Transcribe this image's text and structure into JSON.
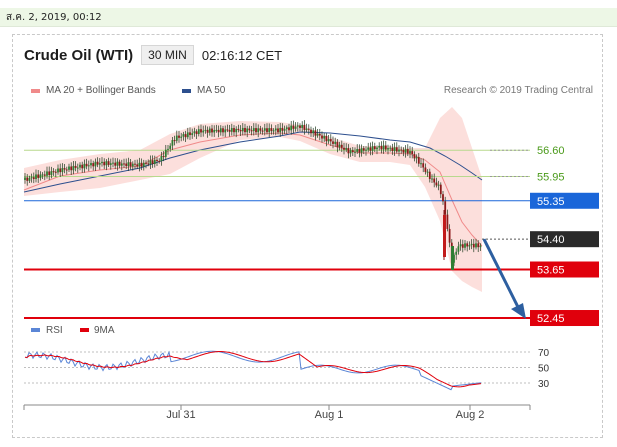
{
  "top_bar": {
    "date_text": "ส.ค. 2, 2019, 00:12"
  },
  "header": {
    "title": "Crude Oil (WTI)",
    "timeframe": "30 MIN",
    "time": "02:16:12 CET"
  },
  "legend": {
    "ma20_label": "MA 20 + Bollinger Bands",
    "ma50_label": "MA 50",
    "ma20_color": "#f08a8a",
    "ma50_color": "#2d4f8e"
  },
  "credit": "Research © 2019 Trading Central",
  "rsi_legend": {
    "rsi_label": "RSI",
    "ma_label": "9MA"
  },
  "chart_data": {
    "type": "candlestick",
    "x_tick_labels": [
      "Jul 31",
      "Aug 1",
      "Aug 2"
    ],
    "levels": [
      {
        "value": 56.6,
        "label": "56.60",
        "kind": "resistance",
        "color": "#4a9a1a"
      },
      {
        "value": 55.95,
        "label": "55.95",
        "kind": "resistance",
        "color": "#4a9a1a"
      },
      {
        "value": 55.35,
        "label": "55.35",
        "kind": "pivot",
        "color": "#1a66d9"
      },
      {
        "value": 54.4,
        "label": "54.40",
        "kind": "last",
        "color": "#222222"
      },
      {
        "value": 53.65,
        "label": "53.65",
        "kind": "support",
        "color": "#e0000c"
      },
      {
        "value": 52.45,
        "label": "52.45",
        "kind": "support",
        "color": "#e0000c"
      }
    ],
    "projection": {
      "from": 54.4,
      "to": 52.45,
      "direction": "down",
      "color": "#2d5fa0"
    },
    "rsi": {
      "levels": [
        70,
        50,
        30
      ],
      "rsi_color": "#5b86d6",
      "ma_color": "#e0000c"
    }
  }
}
